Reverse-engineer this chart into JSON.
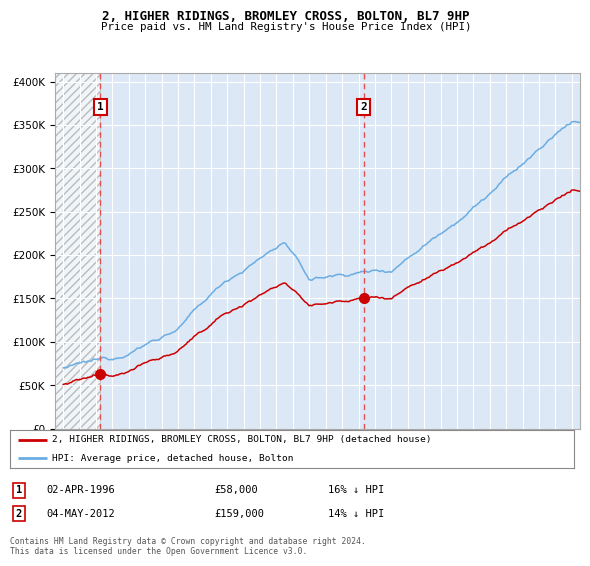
{
  "title": "2, HIGHER RIDINGS, BROMLEY CROSS, BOLTON, BL7 9HP",
  "subtitle": "Price paid vs. HM Land Registry's House Price Index (HPI)",
  "sale1_date": "02-APR-1996",
  "sale1_price": 58000,
  "sale1_label": "16% ↓ HPI",
  "sale2_date": "04-MAY-2012",
  "sale2_price": 159000,
  "sale2_label": "14% ↓ HPI",
  "sale1_year": 1996.25,
  "sale2_year": 2012.33,
  "legend1": "2, HIGHER RIDINGS, BROMLEY CROSS, BOLTON, BL7 9HP (detached house)",
  "legend2": "HPI: Average price, detached house, Bolton",
  "footer": "Contains HM Land Registry data © Crown copyright and database right 2024.\nThis data is licensed under the Open Government Licence v3.0.",
  "hpi_color": "#6aade4",
  "property_color": "#cc0000",
  "bg_color": "#ffffff",
  "plot_bg": "#dce8f5",
  "grid_color": "#ffffff",
  "vline_color": "#e05050",
  "hatch_color": "#bbbbbb",
  "ylim": [
    0,
    410000
  ],
  "xlim_start": 1993.5,
  "xlim_end": 2025.5,
  "year_start": 1994,
  "year_end": 2025
}
